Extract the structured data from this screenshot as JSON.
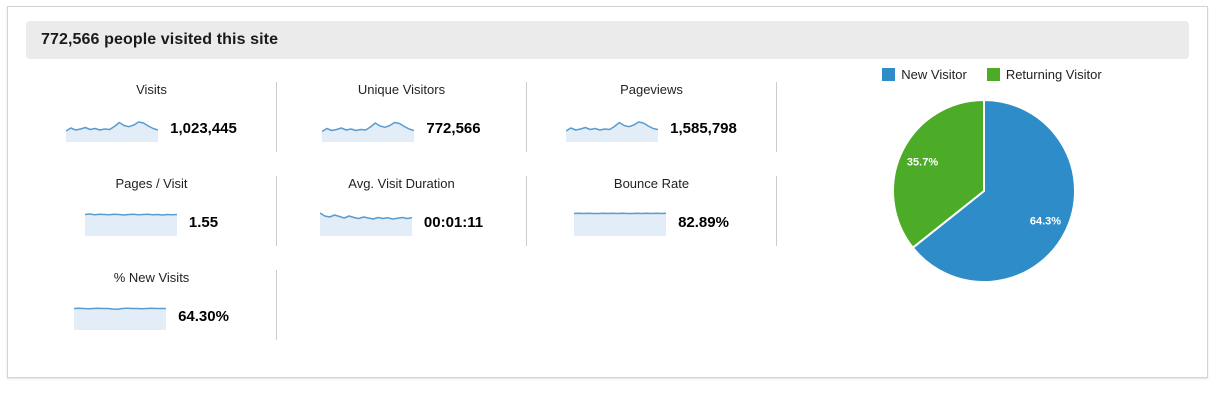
{
  "header": {
    "title": "772,566 people visited this site"
  },
  "colors": {
    "spark_line": "#5b9ccf",
    "spark_fill": "#e2edf7",
    "pie_blue": "#2e8cc8",
    "pie_green": "#4cab27",
    "divider": "#cccccc",
    "header_bg": "#ebebeb"
  },
  "chart_data": [
    {
      "type": "pie",
      "labels": [
        "New Visitor",
        "Returning Visitor"
      ],
      "values": [
        64.3,
        35.7
      ],
      "data_labels": [
        "64.3%",
        "35.7%"
      ],
      "colors": [
        "#2e8cc8",
        "#4cab27"
      ],
      "legend_position": "top-center",
      "start_angle_deg": 0,
      "direction": "clockwise",
      "label_radius_fraction": 0.75
    },
    {
      "type": "line",
      "subtype": "sparkline-metrics",
      "series": [
        {
          "name": "Visits",
          "value": "1,023,445",
          "points": [
            0.38,
            0.5,
            0.42,
            0.46,
            0.52,
            0.44,
            0.48,
            0.42,
            0.46,
            0.44,
            0.56,
            0.72,
            0.6,
            0.55,
            0.62,
            0.74,
            0.7,
            0.58,
            0.48,
            0.42
          ]
        },
        {
          "name": "Unique Visitors",
          "value": "772,566",
          "points": [
            0.36,
            0.48,
            0.4,
            0.44,
            0.5,
            0.42,
            0.46,
            0.4,
            0.44,
            0.42,
            0.54,
            0.7,
            0.58,
            0.53,
            0.6,
            0.72,
            0.68,
            0.56,
            0.46,
            0.4
          ]
        },
        {
          "name": "Pageviews",
          "value": "1,585,798",
          "points": [
            0.38,
            0.5,
            0.42,
            0.46,
            0.52,
            0.44,
            0.48,
            0.42,
            0.46,
            0.44,
            0.56,
            0.72,
            0.6,
            0.55,
            0.62,
            0.74,
            0.7,
            0.58,
            0.48,
            0.44
          ]
        },
        {
          "name": "Pages / Visit",
          "value": "1.55",
          "points": [
            0.8,
            0.82,
            0.79,
            0.81,
            0.8,
            0.79,
            0.81,
            0.8,
            0.78,
            0.8,
            0.81,
            0.79,
            0.8,
            0.81,
            0.79,
            0.8,
            0.78,
            0.8,
            0.79,
            0.8
          ]
        },
        {
          "name": "Avg. Visit Duration",
          "value": "00:01:11",
          "points": [
            0.86,
            0.74,
            0.7,
            0.78,
            0.72,
            0.66,
            0.74,
            0.68,
            0.64,
            0.7,
            0.66,
            0.62,
            0.68,
            0.64,
            0.67,
            0.62,
            0.65,
            0.68,
            0.64,
            0.67
          ]
        },
        {
          "name": "Bounce Rate",
          "value": "82.89%",
          "points": [
            0.84,
            0.85,
            0.84,
            0.85,
            0.84,
            0.84,
            0.85,
            0.84,
            0.85,
            0.84,
            0.85,
            0.84,
            0.84,
            0.85,
            0.84,
            0.85,
            0.84,
            0.85,
            0.84,
            0.85
          ]
        },
        {
          "name": "% New Visits",
          "value": "64.30%",
          "points": [
            0.8,
            0.81,
            0.8,
            0.79,
            0.8,
            0.81,
            0.8,
            0.8,
            0.78,
            0.77,
            0.8,
            0.81,
            0.8,
            0.8,
            0.79,
            0.8,
            0.81,
            0.8,
            0.8,
            0.8
          ]
        }
      ]
    }
  ]
}
